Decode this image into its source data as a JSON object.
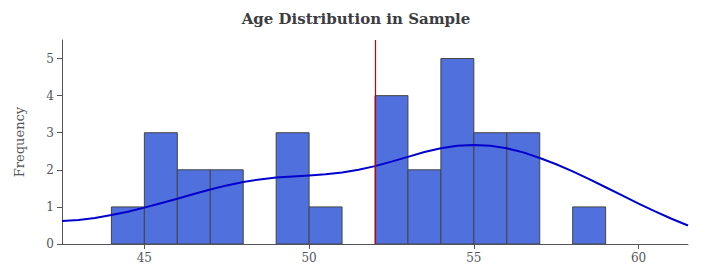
{
  "chart_data": {
    "type": "histogram",
    "title": "Age Distribution in Sample",
    "ylabel": "Frequency",
    "bins": [
      43,
      44,
      45,
      46,
      47,
      48,
      49,
      50,
      51,
      52,
      53,
      54,
      55,
      56,
      57,
      58,
      59,
      60,
      61
    ],
    "values": [
      0,
      1,
      3,
      2,
      2,
      0,
      3,
      1,
      0,
      4,
      2,
      5,
      3,
      3,
      0,
      1,
      0,
      0
    ],
    "kde": {
      "type": "line",
      "color": "#0000cc",
      "x": [
        42.5,
        43.0,
        43.5,
        44.0,
        44.5,
        45.0,
        45.5,
        46.0,
        46.5,
        47.0,
        47.5,
        48.0,
        48.5,
        49.0,
        49.5,
        50.0,
        50.5,
        51.0,
        51.5,
        52.0,
        52.5,
        53.0,
        53.5,
        54.0,
        54.5,
        55.0,
        55.5,
        56.0,
        56.5,
        57.0,
        57.5,
        58.0,
        58.5,
        59.0,
        59.5,
        60.0,
        60.5,
        61.0,
        61.5
      ],
      "values": [
        0.62,
        0.65,
        0.7,
        0.78,
        0.87,
        0.98,
        1.1,
        1.22,
        1.35,
        1.47,
        1.58,
        1.67,
        1.74,
        1.79,
        1.82,
        1.85,
        1.88,
        1.93,
        2.0,
        2.1,
        2.22,
        2.35,
        2.48,
        2.58,
        2.65,
        2.67,
        2.65,
        2.58,
        2.47,
        2.32,
        2.15,
        1.96,
        1.75,
        1.53,
        1.31,
        1.09,
        0.88,
        0.68,
        0.5
      ]
    },
    "vline": {
      "x": 52.0,
      "color": "#cc0000"
    },
    "xlim": [
      42.5,
      61.5
    ],
    "ylim": [
      0,
      5.5
    ],
    "xticks": [
      45,
      50,
      55,
      60
    ],
    "yticks": [
      0,
      1,
      2,
      3,
      4,
      5
    ],
    "grid": false
  }
}
